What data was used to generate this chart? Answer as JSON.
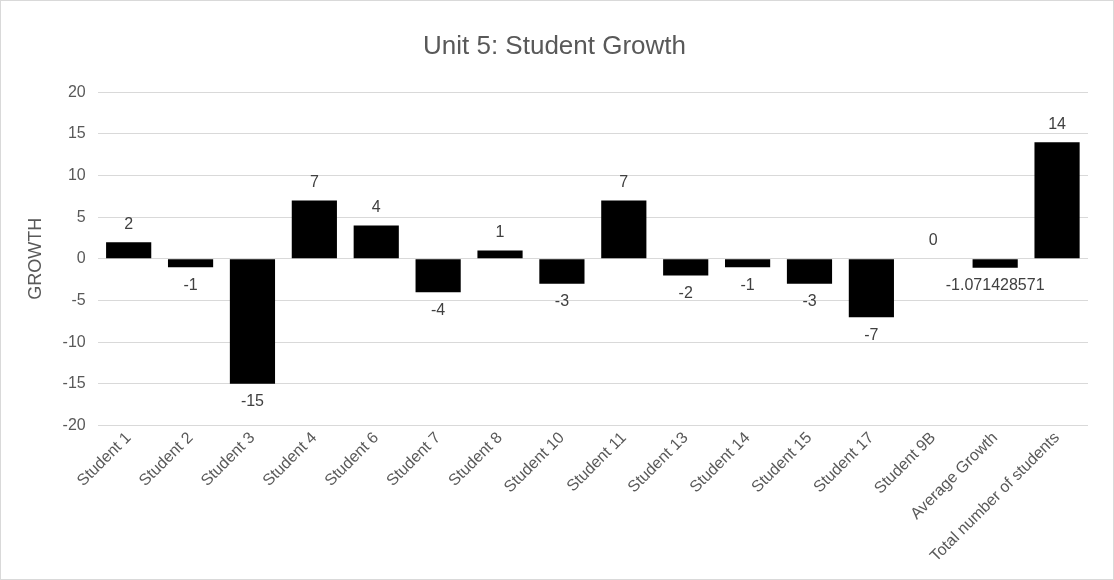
{
  "chart_data": {
    "type": "bar",
    "title": "Unit 5: Student Growth",
    "ylabel": "GROWTH",
    "categories": [
      "Student 1",
      "Student 2",
      "Student 3",
      "Student 4",
      "Student 6",
      "Student 7",
      "Student 8",
      "Student 10",
      "Student 11",
      "Student 13",
      "Student 14",
      "Student 15",
      "Student 17",
      "Student 9B",
      "Average Growth",
      "Total number of students"
    ],
    "values": [
      2,
      -1,
      -15,
      7,
      4,
      -4,
      1,
      -3,
      7,
      -2,
      -1,
      -3,
      -7,
      0,
      -1.071428571,
      14
    ],
    "color": "#000000",
    "ylim": [
      -20,
      20
    ],
    "yticks": [
      -20,
      -15,
      -10,
      -5,
      0,
      5,
      10,
      15,
      20
    ],
    "grid": "y",
    "data_labels": true,
    "legend": false
  }
}
